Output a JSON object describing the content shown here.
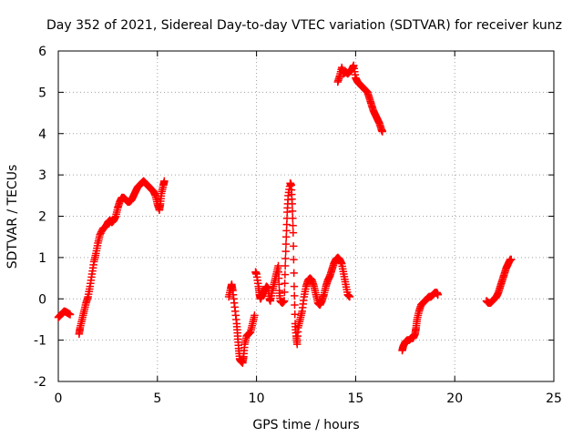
{
  "chart_data": {
    "type": "scatter",
    "title": "Day 352 of 2021, Sidereal Day-to-day VTEC variation (SDTVAR) for receiver kunz",
    "xlabel": "GPS time / hours",
    "ylabel": "SDTVAR / TECUs",
    "xlim": [
      0,
      25
    ],
    "ylim": [
      -2,
      6
    ],
    "xticks": [
      0,
      5,
      10,
      15,
      20,
      25
    ],
    "yticks": [
      -2,
      -1,
      0,
      1,
      2,
      3,
      4,
      5,
      6
    ],
    "grid": true,
    "legend": "none",
    "marker": "plus",
    "color": "#ff0000",
    "segments": [
      [
        [
          0.0,
          -0.45
        ],
        [
          0.1,
          -0.4
        ],
        [
          0.2,
          -0.35
        ],
        [
          0.3,
          -0.3
        ],
        [
          0.4,
          -0.32
        ],
        [
          0.5,
          -0.35
        ],
        [
          0.6,
          -0.38
        ]
      ],
      [
        [
          1.05,
          -0.85
        ],
        [
          1.1,
          -0.7
        ],
        [
          1.2,
          -0.5
        ],
        [
          1.3,
          -0.3
        ],
        [
          1.4,
          -0.1
        ],
        [
          1.5,
          0.05
        ],
        [
          1.6,
          0.3
        ],
        [
          1.7,
          0.6
        ],
        [
          1.8,
          0.9
        ],
        [
          1.9,
          1.1
        ],
        [
          2.0,
          1.35
        ],
        [
          2.1,
          1.55
        ],
        [
          2.25,
          1.7
        ],
        [
          2.4,
          1.75
        ],
        [
          2.5,
          1.85
        ],
        [
          2.6,
          1.9
        ],
        [
          2.7,
          1.85
        ],
        [
          2.8,
          1.9
        ],
        [
          2.9,
          2.0
        ],
        [
          3.0,
          2.2
        ],
        [
          3.1,
          2.35
        ],
        [
          3.2,
          2.45
        ],
        [
          3.3,
          2.45
        ],
        [
          3.4,
          2.4
        ],
        [
          3.5,
          2.35
        ],
        [
          3.6,
          2.35
        ],
        [
          3.7,
          2.4
        ],
        [
          3.8,
          2.5
        ],
        [
          3.9,
          2.6
        ],
        [
          4.0,
          2.7
        ],
        [
          4.1,
          2.75
        ],
        [
          4.2,
          2.8
        ],
        [
          4.3,
          2.85
        ],
        [
          4.4,
          2.8
        ],
        [
          4.5,
          2.75
        ],
        [
          4.6,
          2.7
        ],
        [
          4.7,
          2.65
        ],
        [
          4.8,
          2.6
        ],
        [
          4.9,
          2.5
        ],
        [
          5.0,
          2.3
        ],
        [
          5.1,
          2.15
        ],
        [
          5.15,
          2.3
        ],
        [
          5.2,
          2.55
        ],
        [
          5.3,
          2.75
        ],
        [
          5.35,
          2.85
        ]
      ],
      [
        [
          8.6,
          0.05
        ],
        [
          8.7,
          0.25
        ],
        [
          8.75,
          0.35
        ],
        [
          8.8,
          0.2
        ],
        [
          8.9,
          -0.2
        ],
        [
          9.0,
          -0.6
        ],
        [
          9.05,
          -0.9
        ],
        [
          9.1,
          -1.2
        ],
        [
          9.15,
          -1.45
        ],
        [
          9.2,
          -1.5
        ],
        [
          9.3,
          -1.55
        ],
        [
          9.35,
          -1.4
        ],
        [
          9.4,
          -1.1
        ],
        [
          9.5,
          -0.9
        ],
        [
          9.6,
          -0.85
        ],
        [
          9.7,
          -0.8
        ],
        [
          9.8,
          -0.6
        ],
        [
          9.9,
          -0.4
        ]
      ],
      [
        [
          9.95,
          0.65
        ],
        [
          10.0,
          0.6
        ],
        [
          10.1,
          0.3
        ],
        [
          10.15,
          0.1
        ],
        [
          10.2,
          0.0
        ],
        [
          10.3,
          0.1
        ],
        [
          10.4,
          0.2
        ],
        [
          10.5,
          0.3
        ],
        [
          10.6,
          0.25
        ],
        [
          10.65,
          0.0
        ],
        [
          10.7,
          -0.05
        ],
        [
          10.8,
          0.2
        ],
        [
          10.9,
          0.4
        ],
        [
          11.0,
          0.6
        ],
        [
          11.1,
          0.8
        ],
        [
          11.15,
          0.2
        ],
        [
          11.2,
          -0.05
        ],
        [
          11.3,
          -0.1
        ],
        [
          11.4,
          -0.05
        ],
        [
          11.45,
          0.8
        ],
        [
          11.5,
          1.5
        ],
        [
          11.55,
          2.1
        ],
        [
          11.6,
          2.5
        ],
        [
          11.7,
          2.8
        ],
        [
          11.75,
          2.75
        ],
        [
          11.8,
          2.3
        ],
        [
          11.85,
          1.6
        ],
        [
          11.9,
          0.3
        ],
        [
          11.95,
          -0.6
        ],
        [
          12.0,
          -0.9
        ],
        [
          12.05,
          -1.1
        ],
        [
          12.1,
          -0.7
        ],
        [
          12.2,
          -0.5
        ],
        [
          12.3,
          -0.3
        ],
        [
          12.4,
          0.05
        ],
        [
          12.5,
          0.3
        ],
        [
          12.6,
          0.45
        ],
        [
          12.7,
          0.5
        ],
        [
          12.8,
          0.45
        ],
        [
          12.9,
          0.3
        ],
        [
          13.0,
          0.1
        ],
        [
          13.1,
          -0.1
        ],
        [
          13.2,
          -0.15
        ],
        [
          13.3,
          -0.05
        ],
        [
          13.4,
          0.1
        ],
        [
          13.5,
          0.3
        ],
        [
          13.6,
          0.45
        ],
        [
          13.7,
          0.55
        ],
        [
          13.8,
          0.7
        ],
        [
          13.9,
          0.85
        ],
        [
          14.0,
          0.95
        ],
        [
          14.1,
          1.0
        ],
        [
          14.2,
          0.95
        ],
        [
          14.3,
          0.85
        ],
        [
          14.4,
          0.6
        ],
        [
          14.5,
          0.35
        ],
        [
          14.6,
          0.1
        ],
        [
          14.7,
          0.05
        ]
      ],
      [
        [
          14.1,
          5.25
        ],
        [
          14.2,
          5.4
        ],
        [
          14.3,
          5.6
        ],
        [
          14.4,
          5.45
        ],
        [
          14.5,
          5.5
        ],
        [
          14.6,
          5.45
        ],
        [
          14.7,
          5.5
        ],
        [
          14.8,
          5.55
        ],
        [
          14.9,
          5.65
        ],
        [
          15.0,
          5.35
        ],
        [
          15.1,
          5.25
        ],
        [
          15.2,
          5.2
        ],
        [
          15.3,
          5.15
        ],
        [
          15.4,
          5.1
        ],
        [
          15.5,
          5.05
        ],
        [
          15.6,
          5.0
        ],
        [
          15.7,
          4.85
        ],
        [
          15.8,
          4.7
        ],
        [
          15.9,
          4.55
        ],
        [
          16.0,
          4.45
        ],
        [
          16.1,
          4.35
        ],
        [
          16.2,
          4.25
        ],
        [
          16.3,
          4.1
        ],
        [
          16.35,
          4.05
        ]
      ],
      [
        [
          17.35,
          -1.25
        ],
        [
          17.4,
          -1.15
        ],
        [
          17.5,
          -1.05
        ],
        [
          17.6,
          -1.0
        ],
        [
          17.7,
          -1.0
        ],
        [
          17.8,
          -0.95
        ],
        [
          17.9,
          -0.95
        ],
        [
          18.0,
          -0.85
        ],
        [
          18.05,
          -0.7
        ],
        [
          18.1,
          -0.5
        ],
        [
          18.2,
          -0.3
        ],
        [
          18.3,
          -0.15
        ],
        [
          18.4,
          -0.1
        ],
        [
          18.5,
          -0.05
        ],
        [
          18.6,
          0.0
        ],
        [
          18.7,
          0.05
        ],
        [
          18.8,
          0.05
        ],
        [
          18.9,
          0.1
        ],
        [
          19.0,
          0.15
        ],
        [
          19.1,
          0.15
        ],
        [
          19.15,
          0.1
        ]
      ],
      [
        [
          21.6,
          -0.05
        ],
        [
          21.7,
          -0.1
        ],
        [
          21.8,
          -0.1
        ],
        [
          21.9,
          -0.05
        ],
        [
          22.0,
          0.0
        ],
        [
          22.1,
          0.05
        ],
        [
          22.2,
          0.15
        ],
        [
          22.3,
          0.3
        ],
        [
          22.4,
          0.45
        ],
        [
          22.5,
          0.6
        ],
        [
          22.6,
          0.75
        ],
        [
          22.7,
          0.85
        ],
        [
          22.8,
          0.95
        ],
        [
          22.85,
          0.95
        ]
      ]
    ]
  }
}
